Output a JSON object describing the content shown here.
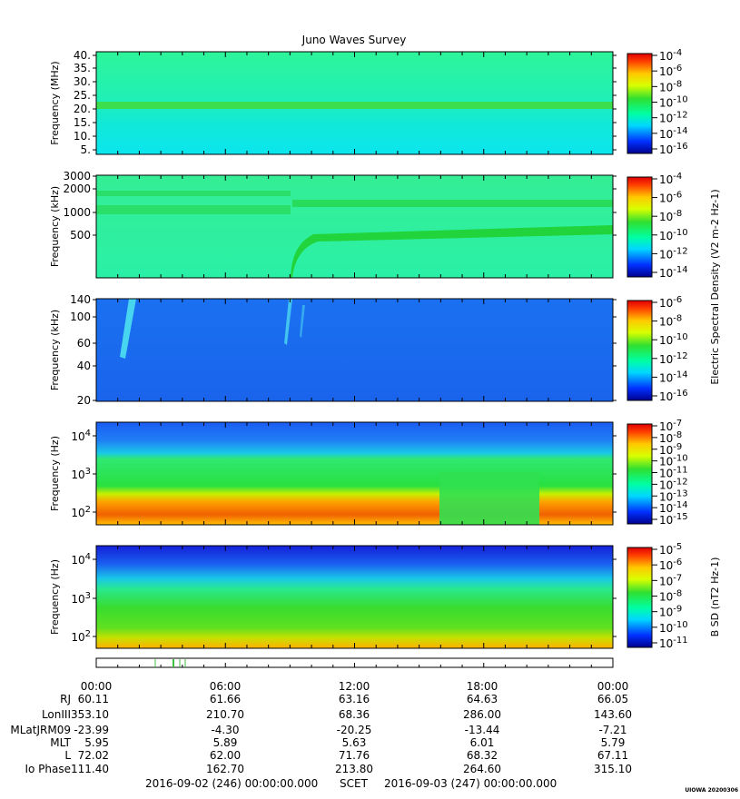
{
  "title": "Juno Waves Survey",
  "footer": {
    "start": "2016-09-02 (246) 00:00:00.000",
    "label": "SCET",
    "end": "2016-09-03 (247) 00:00:00.000"
  },
  "watermark": "UIOWA 20200306",
  "chart_data": [
    {
      "type": "heatmap",
      "ylabel": "Frequency (MHz)",
      "yticks": [
        "40.",
        "35.",
        "30.",
        "25.",
        "20.",
        "15.",
        "10.",
        "5."
      ],
      "colorbar": {
        "ticks": [
          "10-4",
          "10-6",
          "10-8",
          "10-10",
          "10-12",
          "10-14",
          "10-16"
        ]
      }
    },
    {
      "type": "heatmap",
      "ylabel": "Frequency (kHz)",
      "yticks": [
        "3000",
        "2000",
        "1000",
        "500"
      ],
      "colorbar": {
        "ticks": [
          "10-4",
          "10-6",
          "10-8",
          "10-10",
          "10-12",
          "10-14"
        ],
        "label": "Electric Spectral Density (V2 m-2 Hz-1)"
      }
    },
    {
      "type": "heatmap",
      "ylabel": "Frequency (kHz)",
      "yticks": [
        "140",
        "100",
        "60",
        "40",
        "20"
      ],
      "colorbar": {
        "ticks": [
          "10-6",
          "10-8",
          "10-10",
          "10-12",
          "10-14",
          "10-16"
        ]
      }
    },
    {
      "type": "heatmap",
      "ylabel": "Frequency (Hz)",
      "yticks": [
        "104",
        "103",
        "102"
      ],
      "colorbar": {
        "ticks": [
          "10-7",
          "10-8",
          "10-9",
          "10-10",
          "10-11",
          "10-12",
          "10-13",
          "10-14",
          "10-15"
        ]
      }
    },
    {
      "type": "heatmap",
      "ylabel": "Frequency (Hz)",
      "yticks": [
        "104",
        "103",
        "102"
      ],
      "colorbar": {
        "ticks": [
          "10-5",
          "10-6",
          "10-7",
          "10-8",
          "10-9",
          "10-10",
          "10-11"
        ],
        "label": "B SD (nT2 Hz-1)"
      }
    },
    {
      "type": "table",
      "columns": [
        "00:00",
        "06:00",
        "12:00",
        "18:00",
        "00:00"
      ],
      "rows": [
        {
          "label": "RJ",
          "values": [
            "60.11",
            "61.66",
            "63.16",
            "64.63",
            "66.05"
          ]
        },
        {
          "label": "LonIII",
          "values": [
            "353.10",
            "210.70",
            "68.36",
            "286.00",
            "143.60"
          ]
        },
        {
          "label": "MLatJRM09",
          "values": [
            "-23.99",
            "-4.30",
            "-20.25",
            "-13.44",
            "-7.21"
          ]
        },
        {
          "label": "MLT",
          "values": [
            "5.95",
            "5.89",
            "5.63",
            "6.01",
            "5.79"
          ]
        },
        {
          "label": "L",
          "values": [
            "72.02",
            "62.00",
            "71.76",
            "68.32",
            "67.11"
          ]
        },
        {
          "label": "Io Phase",
          "values": [
            "111.40",
            "162.70",
            "213.80",
            "264.60",
            "315.10"
          ]
        }
      ]
    }
  ]
}
